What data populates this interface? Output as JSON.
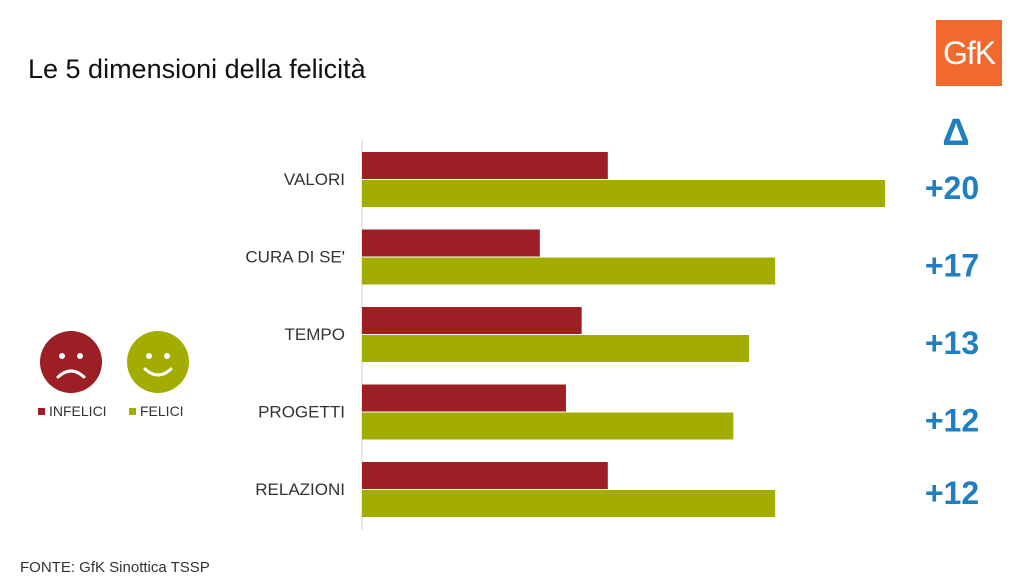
{
  "title": "Le 5 dimensioni della felicità",
  "logo_text": "GfK",
  "delta_symbol": "Δ",
  "source": "FONTE: GfK Sinottica TSSP",
  "legend": [
    {
      "label": "INFELICI",
      "color": "#9b1f24"
    },
    {
      "label": "FELICI",
      "color": "#a3ac00"
    }
  ],
  "colors": {
    "infelici": "#9b1f24",
    "felici": "#a3ac00",
    "delta": "#1f7fc1",
    "logo": "#f2692e"
  },
  "chart_data": {
    "type": "bar",
    "orientation": "horizontal",
    "categories": [
      "VALORI",
      "CURA DI SE'",
      "TEMPO",
      "PROGETTI",
      "RELAZIONI"
    ],
    "series": [
      {
        "name": "INFELICI",
        "values": [
          47,
          34,
          42,
          39,
          47
        ]
      },
      {
        "name": "FELICI",
        "values": [
          100,
          79,
          74,
          71,
          79
        ]
      }
    ],
    "delta_labels": [
      "+20",
      "+17",
      "+13",
      "+12",
      "+12"
    ],
    "xlim": [
      0,
      100
    ]
  }
}
